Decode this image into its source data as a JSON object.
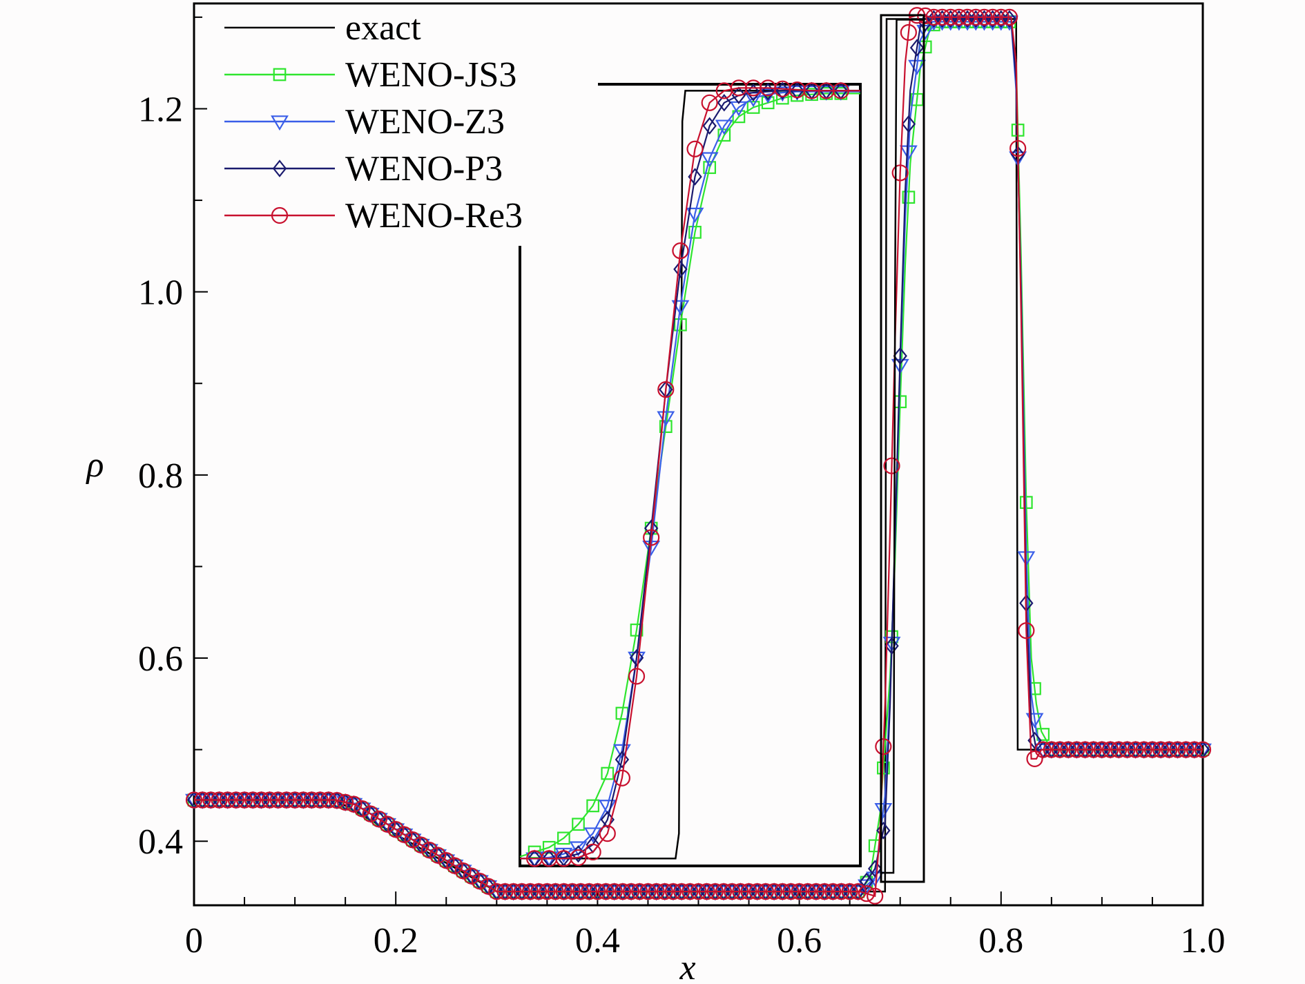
{
  "chart_data": {
    "type": "line",
    "xlabel": "x",
    "ylabel": "ρ",
    "xlim": [
      0,
      1.0
    ],
    "ylim": [
      0.33,
      1.315
    ],
    "grid": false,
    "legend_position": "top-left",
    "x_ticks": [
      {
        "value": 0,
        "label": "0"
      },
      {
        "value": 0.2,
        "label": "0.2"
      },
      {
        "value": 0.4,
        "label": "0.4"
      },
      {
        "value": 0.6,
        "label": "0.6"
      },
      {
        "value": 0.8,
        "label": "0.8"
      },
      {
        "value": 1.0,
        "label": "1.0"
      }
    ],
    "y_ticks": [
      {
        "value": 0.4,
        "label": "0.4"
      },
      {
        "value": 0.6,
        "label": "0.6"
      },
      {
        "value": 0.8,
        "label": "0.8"
      },
      {
        "value": 1.0,
        "label": "1.0"
      },
      {
        "value": 1.2,
        "label": "1.2"
      }
    ],
    "series": [
      {
        "name": "exact",
        "color": "#000000",
        "marker": "none",
        "x": [
          0,
          0.14,
          0.3,
          0.66,
          0.685,
          0.6865,
          0.72,
          0.7215,
          0.815,
          0.8165,
          1.0
        ],
        "y": [
          0.445,
          0.445,
          0.345,
          0.345,
          0.345,
          1.298,
          1.298,
          1.298,
          1.298,
          0.5,
          0.5
        ]
      },
      {
        "name": "WENO-JS3",
        "color": "#2ee52e",
        "marker": "square",
        "x": [
          0,
          0.14,
          0.16,
          0.3,
          0.66,
          0.67,
          0.68,
          0.69,
          0.695,
          0.7,
          0.705,
          0.71,
          0.72,
          0.73,
          0.74,
          0.81,
          0.815,
          0.82,
          0.825,
          0.83,
          0.835,
          0.84,
          0.85,
          1.0
        ],
        "y": [
          0.445,
          0.445,
          0.44,
          0.345,
          0.345,
          0.36,
          0.43,
          0.58,
          0.71,
          0.88,
          1.03,
          1.14,
          1.245,
          1.29,
          1.295,
          1.295,
          1.25,
          1.03,
          0.77,
          0.6,
          0.55,
          0.52,
          0.5,
          0.5
        ]
      },
      {
        "name": "WENO-Z3",
        "color": "#3a5ee8",
        "marker": "triangle-down",
        "x": [
          0,
          0.14,
          0.16,
          0.3,
          0.66,
          0.675,
          0.685,
          0.69,
          0.695,
          0.7,
          0.705,
          0.71,
          0.72,
          0.73,
          0.81,
          0.815,
          0.82,
          0.825,
          0.83,
          0.835,
          0.84,
          1.0
        ],
        "y": [
          0.445,
          0.445,
          0.44,
          0.345,
          0.345,
          0.36,
          0.45,
          0.56,
          0.73,
          0.92,
          1.08,
          1.19,
          1.275,
          1.295,
          1.295,
          1.22,
          1.0,
          0.71,
          0.56,
          0.52,
          0.5,
          0.5
        ]
      },
      {
        "name": "WENO-P3",
        "color": "#1a1a6e",
        "marker": "diamond",
        "x": [
          0,
          0.14,
          0.16,
          0.3,
          0.66,
          0.675,
          0.685,
          0.69,
          0.695,
          0.7,
          0.705,
          0.71,
          0.72,
          0.73,
          0.81,
          0.815,
          0.82,
          0.825,
          0.83,
          0.835,
          0.84,
          1.0
        ],
        "y": [
          0.445,
          0.445,
          0.44,
          0.345,
          0.345,
          0.37,
          0.42,
          0.55,
          0.74,
          0.93,
          1.11,
          1.22,
          1.29,
          1.298,
          1.298,
          1.23,
          0.99,
          0.66,
          0.53,
          0.5,
          0.5,
          0.5
        ]
      },
      {
        "name": "WENO-Re3",
        "color": "#c8102e",
        "marker": "circle",
        "x": [
          0,
          0.14,
          0.16,
          0.3,
          0.66,
          0.675,
          0.68,
          0.685,
          0.69,
          0.695,
          0.7,
          0.705,
          0.71,
          0.72,
          0.73,
          0.81,
          0.815,
          0.82,
          0.825,
          0.83,
          0.835,
          0.84,
          1.0
        ],
        "y": [
          0.445,
          0.445,
          0.44,
          0.345,
          0.345,
          0.34,
          0.41,
          0.55,
          0.74,
          0.95,
          1.13,
          1.25,
          1.3,
          1.303,
          1.3,
          1.3,
          1.25,
          0.97,
          0.63,
          0.49,
          0.49,
          0.5,
          0.5
        ]
      }
    ],
    "inset": {
      "xlim": [
        0.33,
        0.68
      ],
      "ylim": [
        0.375,
        1.22
      ],
      "x_ticks": [],
      "y_ticks": [],
      "series": [
        {
          "name": "exact",
          "color": "#000000",
          "marker": "none",
          "x": [
            0.33,
            0.49,
            0.4935,
            0.4955,
            0.497,
            0.5,
            0.52,
            0.68
          ],
          "y": [
            0.383,
            0.383,
            0.41,
            0.8,
            1.18,
            1.213,
            1.213,
            1.213
          ]
        },
        {
          "name": "WENO-JS3",
          "color": "#2ee52e",
          "marker": "square",
          "x": [
            0.33,
            0.345,
            0.36,
            0.375,
            0.39,
            0.405,
            0.42,
            0.435,
            0.45,
            0.465,
            0.48,
            0.495,
            0.51,
            0.525,
            0.54,
            0.555,
            0.57,
            0.585,
            0.6,
            0.615,
            0.63,
            0.645,
            0.66,
            0.68
          ],
          "y": [
            0.385,
            0.39,
            0.395,
            0.405,
            0.42,
            0.44,
            0.475,
            0.54,
            0.63,
            0.74,
            0.85,
            0.96,
            1.06,
            1.13,
            1.165,
            1.185,
            1.195,
            1.2,
            1.205,
            1.208,
            1.209,
            1.21,
            1.21,
            1.21
          ]
        },
        {
          "name": "WENO-Z3",
          "color": "#3a5ee8",
          "marker": "triangle-down",
          "x": [
            0.33,
            0.345,
            0.36,
            0.375,
            0.39,
            0.405,
            0.42,
            0.435,
            0.45,
            0.465,
            0.48,
            0.495,
            0.51,
            0.525,
            0.54,
            0.555,
            0.57,
            0.585,
            0.6,
            0.615,
            0.63,
            0.645,
            0.66,
            0.68
          ],
          "y": [
            0.383,
            0.383,
            0.384,
            0.388,
            0.395,
            0.41,
            0.44,
            0.5,
            0.6,
            0.72,
            0.86,
            0.98,
            1.08,
            1.14,
            1.175,
            1.195,
            1.205,
            1.209,
            1.211,
            1.212,
            1.212,
            1.212,
            1.212,
            1.212
          ]
        },
        {
          "name": "WENO-P3",
          "color": "#1a1a6e",
          "marker": "diamond",
          "x": [
            0.33,
            0.345,
            0.36,
            0.375,
            0.39,
            0.405,
            0.42,
            0.435,
            0.45,
            0.465,
            0.48,
            0.495,
            0.51,
            0.525,
            0.54,
            0.555,
            0.57,
            0.585,
            0.6,
            0.615,
            0.63,
            0.645,
            0.66,
            0.68
          ],
          "y": [
            0.383,
            0.383,
            0.383,
            0.384,
            0.388,
            0.398,
            0.425,
            0.49,
            0.6,
            0.74,
            0.89,
            1.02,
            1.12,
            1.175,
            1.2,
            1.208,
            1.211,
            1.212,
            1.213,
            1.213,
            1.213,
            1.213,
            1.213,
            1.213
          ]
        },
        {
          "name": "WENO-Re3",
          "color": "#c8102e",
          "marker": "circle",
          "x": [
            0.33,
            0.345,
            0.36,
            0.375,
            0.39,
            0.405,
            0.42,
            0.435,
            0.45,
            0.465,
            0.48,
            0.495,
            0.51,
            0.525,
            0.54,
            0.555,
            0.57,
            0.585,
            0.6,
            0.615,
            0.63,
            0.645,
            0.66,
            0.68
          ],
          "y": [
            0.383,
            0.383,
            0.383,
            0.383,
            0.384,
            0.39,
            0.41,
            0.47,
            0.58,
            0.73,
            0.89,
            1.04,
            1.15,
            1.2,
            1.213,
            1.216,
            1.216,
            1.216,
            1.215,
            1.214,
            1.213,
            1.213,
            1.213,
            1.213
          ]
        }
      ]
    },
    "inset2": {
      "xlim": [
        0.67,
        0.725
      ],
      "ylim": [
        0.335,
        1.303
      ],
      "series": [
        {
          "name": "exact",
          "color": "#000000",
          "marker": "none",
          "x": [
            0.67,
            0.686,
            0.688,
            0.69,
            0.725
          ],
          "y": [
            0.345,
            0.345,
            1.0,
            1.298,
            1.298
          ]
        }
      ]
    }
  }
}
